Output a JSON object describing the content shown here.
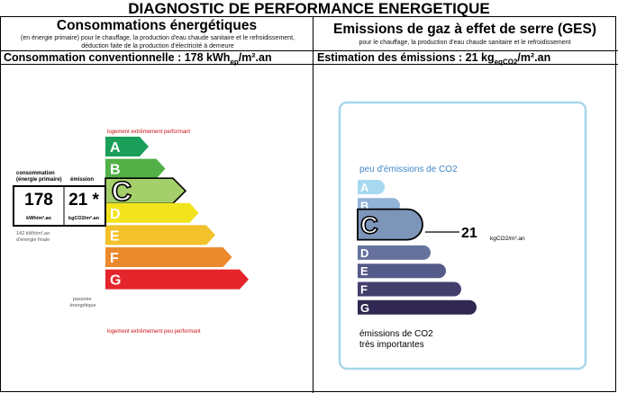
{
  "title": "DIAGNOSTIC DE PERFORMANCE ENERGETIQUE",
  "energy": {
    "heading": "Consommations énergétiques",
    "subheading": "(en énergie primaire) pour le chauffage, la production d'eau chaude sanitaire et le refroidissement, déduction faite de la production d'électricité à demeure",
    "summary_prefix": "Consommation conventionnelle : 178 kWh",
    "summary_sub": "ep",
    "summary_suffix": "/m².an",
    "top_note": "logement extrêmement performant",
    "bottom_note": "logement extrêmement peu performant",
    "col_label_consumption": "consommation\n(énergie primaire)",
    "col_label_emission": "émission",
    "consumption_value": "178",
    "emission_value": "21 *",
    "consumption_unit": "kWh/m².an",
    "emission_unit": "kgCO2/m².an",
    "final_energy_note": "142 kWh/m².an\nd'énergie finale",
    "passoire_label": "passoire\nénergétique",
    "current_class": "C",
    "classes": [
      {
        "letter": "A",
        "color": "#1b9e5a"
      },
      {
        "letter": "B",
        "color": "#52b047"
      },
      {
        "letter": "C",
        "color": "#a5cf6a"
      },
      {
        "letter": "D",
        "color": "#f2e41c"
      },
      {
        "letter": "E",
        "color": "#f2c12b"
      },
      {
        "letter": "F",
        "color": "#ec8a2e"
      },
      {
        "letter": "G",
        "color": "#e4252b"
      }
    ]
  },
  "ges": {
    "heading": "Emissions de gaz à effet de serre (GES)",
    "subheading": "pour le chauffage, la production d'eau chaude sanitaire et le refroidissement",
    "summary_prefix": "Estimation des émissions : 21 kg",
    "summary_sub": "eqCO2",
    "summary_suffix": "/m².an",
    "top_note": "peu d'émissions de CO2",
    "bottom_note": "émissions de CO2\ntrès importantes",
    "value": "21",
    "unit": "kgCO2/m².an",
    "current_class": "C",
    "frame_color": "#a7d6ea",
    "classes": [
      {
        "letter": "A",
        "color": "#a6d9ef"
      },
      {
        "letter": "B",
        "color": "#91b3d7"
      },
      {
        "letter": "C",
        "color": "#7e95ba"
      },
      {
        "letter": "D",
        "color": "#66729d"
      },
      {
        "letter": "E",
        "color": "#545a89"
      },
      {
        "letter": "F",
        "color": "#433f6d"
      },
      {
        "letter": "G",
        "color": "#302752"
      }
    ]
  }
}
